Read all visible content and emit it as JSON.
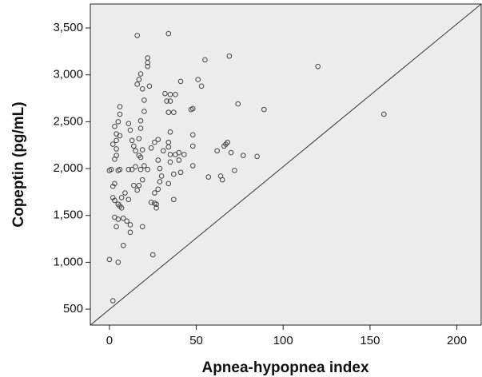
{
  "chart_data": {
    "type": "scatter",
    "xlabel": "Apnea-hypopnea index",
    "ylabel": "Copeptin (pg/mL)",
    "xlim": [
      -11,
      214
    ],
    "ylim": [
      330,
      3756
    ],
    "xticks": [
      0,
      50,
      100,
      150,
      200
    ],
    "yticks": [
      {
        "value": 500,
        "label": "500"
      },
      {
        "value": 1000,
        "label": "1,000"
      },
      {
        "value": 1500,
        "label": "1,500"
      },
      {
        "value": 2000,
        "label": "2,000"
      },
      {
        "value": 2500,
        "label": "2,500"
      },
      {
        "value": 3000,
        "label": "3,000"
      },
      {
        "value": 3500,
        "label": "3,500"
      }
    ],
    "color": "#444444",
    "background": "#ececec",
    "x": [
      0,
      5,
      2,
      25,
      8,
      12,
      12,
      19,
      4,
      5,
      8,
      10,
      3,
      6,
      5,
      7,
      2,
      3,
      7,
      9,
      11,
      14,
      16,
      17,
      19,
      3,
      2,
      1,
      0,
      5,
      6,
      11,
      13,
      15,
      18,
      20,
      22,
      3,
      4,
      4,
      2,
      4,
      6,
      4,
      3,
      5,
      6,
      6,
      11,
      12,
      13,
      14,
      15,
      17,
      18,
      19,
      17,
      18,
      18,
      20,
      20,
      19,
      16,
      17,
      18,
      22,
      22,
      22,
      23,
      16,
      34,
      24,
      26,
      28,
      28,
      29,
      30,
      29,
      28,
      26,
      26,
      27,
      27,
      24,
      31,
      34,
      35,
      34,
      35,
      32,
      35,
      33,
      35,
      38,
      34,
      37,
      41,
      38,
      40,
      43,
      40,
      35,
      37,
      37,
      34,
      41,
      47,
      48,
      48,
      48,
      48,
      51,
      53,
      55,
      57,
      62,
      66,
      67,
      68,
      69,
      70,
      72,
      74,
      64,
      65,
      77,
      85,
      89,
      120,
      158
    ],
    "y": [
      1030,
      1000,
      590,
      1080,
      1180,
      1320,
      1400,
      1380,
      1380,
      1460,
      1470,
      1440,
      1480,
      1600,
      1620,
      1580,
      1690,
      1660,
      1690,
      1740,
      1670,
      1820,
      1770,
      1820,
      1880,
      1840,
      1810,
      1990,
      1980,
      1980,
      1990,
      1990,
      1990,
      2020,
      1990,
      2030,
      1990,
      2100,
      2140,
      2210,
      2260,
      2300,
      2350,
      2370,
      2450,
      2500,
      2580,
      2660,
      2480,
      2410,
      2300,
      2240,
      2190,
      2140,
      2120,
      2200,
      2320,
      2430,
      2510,
      2610,
      2730,
      2850,
      2900,
      2950,
      3010,
      3090,
      3130,
      3180,
      2880,
      3420,
      3440,
      2220,
      2280,
      2310,
      2090,
      2000,
      1920,
      1860,
      1780,
      1740,
      1630,
      1620,
      1580,
      1640,
      2190,
      2230,
      2150,
      2280,
      2390,
      2800,
      2790,
      2720,
      2720,
      2790,
      2600,
      2600,
      2930,
      2150,
      2170,
      2150,
      2090,
      2070,
      1940,
      1670,
      1840,
      1960,
      2630,
      2640,
      2360,
      2240,
      2030,
      2950,
      2880,
      3160,
      1910,
      2190,
      2240,
      2260,
      2280,
      3200,
      2170,
      1980,
      2690,
      1920,
      1880,
      2140,
      2130,
      2630,
      3090,
      2580
    ]
  }
}
